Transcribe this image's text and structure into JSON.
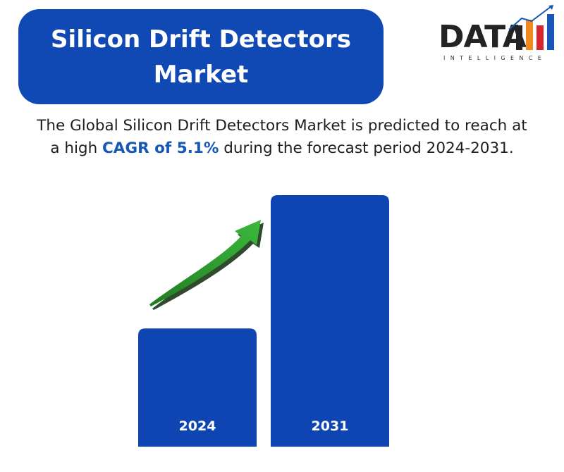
{
  "header": {
    "title_line1": "Silicon Drift Detectors",
    "title_line2": "Market"
  },
  "logo": {
    "main_text": "DATA",
    "sub_text": "INTELLIGENCE"
  },
  "summary": {
    "part1": "The Global Silicon Drift Detectors Market is predicted to reach at",
    "part2": "a high ",
    "highlight": "CAGR of 5.1%",
    "part3": " during the forecast period 2024-2031."
  },
  "colors": {
    "brand_blue": "#1048b4",
    "bar_blue": "#0f45b3",
    "arrow_green": "#2e9c2e",
    "highlight_blue": "#1558b8"
  },
  "icons": {
    "growth_arrow": "growth-arrow-icon",
    "logo_bars": "logo-bars-icon"
  },
  "chart_data": {
    "type": "bar",
    "categories": [
      "2024",
      "2031"
    ],
    "values": [
      47,
      100
    ],
    "ylim": [
      0,
      100
    ],
    "title": "",
    "xlabel": "",
    "ylabel": "",
    "grid": false,
    "legend": "none",
    "annotation": "growth-arrow"
  }
}
